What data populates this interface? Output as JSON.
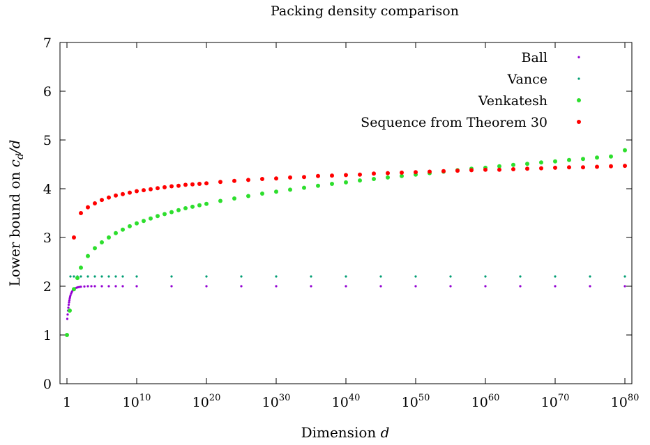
{
  "chart_data": {
    "type": "scatter",
    "title": "Packing density comparison",
    "xlabel_prefix": "Dimension ",
    "xlabel_var": "d",
    "ylabel_prefix": "Lower bound on ",
    "ylabel_var": "c",
    "ylabel_sub": "d",
    "ylabel_suffix": "/d",
    "x_scale": "log10",
    "xlim_exponent": [
      0,
      80
    ],
    "ylim": [
      0,
      7
    ],
    "x_ticks": [
      {
        "base": "1",
        "exp": ""
      },
      {
        "base": "10",
        "exp": "10"
      },
      {
        "base": "10",
        "exp": "20"
      },
      {
        "base": "10",
        "exp": "30"
      },
      {
        "base": "10",
        "exp": "40"
      },
      {
        "base": "10",
        "exp": "50"
      },
      {
        "base": "10",
        "exp": "60"
      },
      {
        "base": "10",
        "exp": "70"
      },
      {
        "base": "10",
        "exp": "80"
      }
    ],
    "y_ticks": [
      "0",
      "1",
      "2",
      "3",
      "4",
      "5",
      "6",
      "7"
    ],
    "grid": false,
    "legend_position": "top-right",
    "series": [
      {
        "name": "Ball",
        "color": "#9400d3",
        "marker": "small-dot",
        "x_log10": [
          0.05,
          0.1,
          0.15,
          0.2,
          0.25,
          0.3,
          0.35,
          0.4,
          0.45,
          0.5,
          0.6,
          0.7,
          0.8,
          0.9,
          1.0,
          1.2,
          1.4,
          1.6,
          1.8,
          2,
          2.5,
          3,
          3.5,
          4,
          5,
          6,
          7,
          8,
          10,
          15,
          20,
          25,
          30,
          35,
          40,
          45,
          50,
          55,
          60,
          65,
          70,
          75,
          80
        ],
        "y": [
          1.33,
          1.42,
          1.5,
          1.56,
          1.62,
          1.67,
          1.71,
          1.75,
          1.78,
          1.81,
          1.85,
          1.88,
          1.91,
          1.93,
          1.945,
          1.96,
          1.97,
          1.98,
          1.985,
          1.99,
          1.995,
          2.0,
          2.0,
          2.0,
          2.0,
          2.0,
          2.0,
          2.0,
          2.0,
          2.0,
          2.0,
          2.0,
          2.0,
          2.0,
          2.0,
          2.0,
          2.0,
          2.0,
          2.0,
          2.0,
          2.0,
          2.0,
          2.0
        ]
      },
      {
        "name": "Vance",
        "color": "#009e73",
        "marker": "small-dot",
        "x_log10": [
          0.5,
          1,
          1.5,
          2,
          3,
          4,
          5,
          6,
          7,
          8,
          10,
          15,
          20,
          25,
          30,
          35,
          40,
          45,
          50,
          55,
          60,
          65,
          70,
          75,
          80
        ],
        "y": [
          2.2,
          2.2,
          2.2,
          2.2,
          2.2,
          2.2,
          2.2,
          2.2,
          2.2,
          2.2,
          2.2,
          2.2,
          2.2,
          2.2,
          2.2,
          2.2,
          2.2,
          2.2,
          2.2,
          2.2,
          2.2,
          2.2,
          2.2,
          2.2,
          2.2
        ]
      },
      {
        "name": "Venkatesh",
        "color": "#2dde2d",
        "marker": "dot",
        "x_log10": [
          0,
          0.4,
          1,
          1.5,
          2,
          3,
          4,
          5,
          6,
          7,
          8,
          9,
          10,
          11,
          12,
          13,
          14,
          15,
          16,
          17,
          18,
          19,
          20,
          22,
          24,
          26,
          28,
          30,
          32,
          34,
          36,
          38,
          40,
          42,
          44,
          46,
          48,
          50,
          52,
          54,
          56,
          58,
          60,
          62,
          64,
          66,
          68,
          70,
          72,
          74,
          76,
          78,
          80
        ],
        "y": [
          1.0,
          1.5,
          1.94,
          2.17,
          2.38,
          2.62,
          2.78,
          2.9,
          3.0,
          3.09,
          3.16,
          3.23,
          3.29,
          3.34,
          3.39,
          3.44,
          3.48,
          3.52,
          3.56,
          3.6,
          3.63,
          3.66,
          3.69,
          3.75,
          3.8,
          3.85,
          3.9,
          3.94,
          3.98,
          4.02,
          4.06,
          4.1,
          4.13,
          4.17,
          4.2,
          4.23,
          4.26,
          4.29,
          4.32,
          4.35,
          4.38,
          4.41,
          4.43,
          4.46,
          4.49,
          4.51,
          4.54,
          4.56,
          4.59,
          4.61,
          4.64,
          4.66,
          4.79
        ]
      },
      {
        "name": "Sequence from Theorem 30",
        "color": "#ff0000",
        "marker": "dot",
        "x_log10": [
          1,
          2,
          3,
          4,
          5,
          6,
          7,
          8,
          9,
          10,
          11,
          12,
          13,
          14,
          15,
          16,
          17,
          18,
          19,
          20,
          22,
          24,
          26,
          28,
          30,
          32,
          34,
          36,
          38,
          40,
          42,
          44,
          46,
          48,
          50,
          52,
          54,
          56,
          58,
          60,
          62,
          64,
          66,
          68,
          70,
          72,
          74,
          76,
          78,
          80
        ],
        "y": [
          3.0,
          3.5,
          3.62,
          3.7,
          3.77,
          3.82,
          3.86,
          3.89,
          3.92,
          3.95,
          3.97,
          3.99,
          4.01,
          4.03,
          4.05,
          4.06,
          4.08,
          4.09,
          4.1,
          4.11,
          4.14,
          4.16,
          4.18,
          4.2,
          4.21,
          4.23,
          4.24,
          4.26,
          4.27,
          4.28,
          4.29,
          4.31,
          4.32,
          4.33,
          4.34,
          4.35,
          4.36,
          4.37,
          4.38,
          4.39,
          4.39,
          4.4,
          4.41,
          4.42,
          4.43,
          4.44,
          4.44,
          4.45,
          4.46,
          4.47
        ]
      }
    ]
  }
}
